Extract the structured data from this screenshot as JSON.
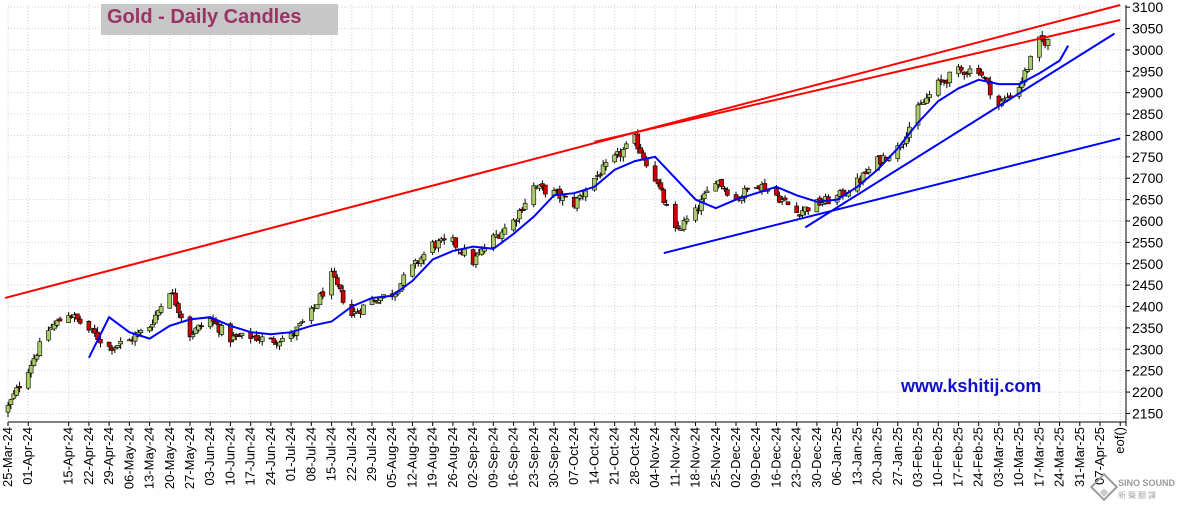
{
  "title": "Gold - Daily Candles",
  "watermark": "www.kshitij.com",
  "logo": {
    "name": "SINO SOUND",
    "sub": "新聲翻譯"
  },
  "chart_data": {
    "type": "candlestick",
    "title": "Gold - Daily Candles",
    "y_ticks": [
      2150,
      2200,
      2250,
      2300,
      2350,
      2400,
      2450,
      2500,
      2550,
      2600,
      2650,
      2700,
      2750,
      2800,
      2850,
      2900,
      2950,
      3000,
      3050,
      3100
    ],
    "ylim": [
      2130,
      3105
    ],
    "x_tick_labels": [
      "25-Mar-24",
      "01-Apr-24",
      "15-Apr-24",
      "22-Apr-24",
      "29-Apr-24",
      "06-May-24",
      "13-May-24",
      "20-May-24",
      "27-May-24",
      "03-Jun-24",
      "10-Jun-24",
      "17-Jun-24",
      "24-Jun-24",
      "01-Jul-24",
      "08-Jul-24",
      "15-Jul-24",
      "22-Jul-24",
      "29-Jul-24",
      "05-Aug-24",
      "12-Aug-24",
      "19-Aug-24",
      "26-Aug-24",
      "02-Sep-24",
      "09-Sep-24",
      "16-Sep-24",
      "23-Sep-24",
      "30-Sep-24",
      "07-Oct-24",
      "14-Oct-24",
      "21-Oct-24",
      "28-Oct-24",
      "04-Nov-24",
      "11-Nov-24",
      "18-Nov-24",
      "25-Nov-24",
      "02-Dec-24",
      "09-Dec-24",
      "16-Dec-24",
      "23-Dec-24",
      "30-Dec-24",
      "06-Jan-25",
      "13-Jan-25",
      "20-Jan-25",
      "27-Jan-25",
      "03-Feb-25",
      "10-Feb-25",
      "17-Feb-25",
      "24-Feb-25",
      "03-Mar-25",
      "10-Mar-25",
      "17-Mar-25",
      "24-Mar-25",
      "31-Mar-25",
      "07-Apr-25",
      "eof()"
    ],
    "close_anchors": [
      [
        "25-Mar-24",
        2165
      ],
      [
        "01-Apr-24",
        2255
      ],
      [
        "08-Apr-24",
        2345
      ],
      [
        "15-Apr-24",
        2385
      ],
      [
        "22-Apr-24",
        2345
      ],
      [
        "29-Apr-24",
        2305
      ],
      [
        "06-May-24",
        2320
      ],
      [
        "13-May-24",
        2355
      ],
      [
        "20-May-24",
        2440
      ],
      [
        "27-May-24",
        2335
      ],
      [
        "03-Jun-24",
        2370
      ],
      [
        "10-Jun-24",
        2325
      ],
      [
        "17-Jun-24",
        2330
      ],
      [
        "24-Jun-24",
        2320
      ],
      [
        "01-Jul-24",
        2330
      ],
      [
        "08-Jul-24",
        2385
      ],
      [
        "15-Jul-24",
        2470
      ],
      [
        "22-Jul-24",
        2380
      ],
      [
        "29-Jul-24",
        2415
      ],
      [
        "05-Aug-24",
        2430
      ],
      [
        "12-Aug-24",
        2490
      ],
      [
        "19-Aug-24",
        2545
      ],
      [
        "26-Aug-24",
        2550
      ],
      [
        "02-Sep-24",
        2505
      ],
      [
        "09-Sep-24",
        2560
      ],
      [
        "16-Sep-24",
        2600
      ],
      [
        "23-Sep-24",
        2680
      ],
      [
        "30-Sep-24",
        2665
      ],
      [
        "07-Oct-24",
        2640
      ],
      [
        "14-Oct-24",
        2700
      ],
      [
        "21-Oct-24",
        2745
      ],
      [
        "28-Oct-24",
        2790
      ],
      [
        "04-Nov-24",
        2700
      ],
      [
        "11-Nov-24",
        2575
      ],
      [
        "18-Nov-24",
        2620
      ],
      [
        "25-Nov-24",
        2700
      ],
      [
        "02-Dec-24",
        2650
      ],
      [
        "09-Dec-24",
        2690
      ],
      [
        "16-Dec-24",
        2660
      ],
      [
        "23-Dec-24",
        2620
      ],
      [
        "30-Dec-24",
        2640
      ],
      [
        "06-Jan-25",
        2655
      ],
      [
        "13-Jan-25",
        2690
      ],
      [
        "20-Jan-25",
        2740
      ],
      [
        "27-Jan-25",
        2770
      ],
      [
        "03-Feb-25",
        2860
      ],
      [
        "10-Feb-25",
        2920
      ],
      [
        "17-Feb-25",
        2950
      ],
      [
        "24-Feb-25",
        2955
      ],
      [
        "03-Mar-25",
        2870
      ],
      [
        "10-Mar-25",
        2915
      ],
      [
        "17-Mar-25",
        3020
      ]
    ],
    "moving_average_points": [
      [
        "22-Apr-24",
        2280
      ],
      [
        "29-Apr-24",
        2375
      ],
      [
        "06-May-24",
        2340
      ],
      [
        "13-May-24",
        2325
      ],
      [
        "20-May-24",
        2355
      ],
      [
        "27-May-24",
        2370
      ],
      [
        "03-Jun-24",
        2375
      ],
      [
        "10-Jun-24",
        2355
      ],
      [
        "17-Jun-24",
        2340
      ],
      [
        "24-Jun-24",
        2335
      ],
      [
        "01-Jul-24",
        2340
      ],
      [
        "08-Jul-24",
        2355
      ],
      [
        "15-Jul-24",
        2365
      ],
      [
        "22-Jul-24",
        2400
      ],
      [
        "29-Jul-24",
        2420
      ],
      [
        "05-Aug-24",
        2425
      ],
      [
        "12-Aug-24",
        2460
      ],
      [
        "19-Aug-24",
        2510
      ],
      [
        "26-Aug-24",
        2530
      ],
      [
        "02-Sep-24",
        2540
      ],
      [
        "09-Sep-24",
        2535
      ],
      [
        "16-Sep-24",
        2570
      ],
      [
        "23-Sep-24",
        2610
      ],
      [
        "30-Sep-24",
        2660
      ],
      [
        "07-Oct-24",
        2665
      ],
      [
        "14-Oct-24",
        2680
      ],
      [
        "21-Oct-24",
        2720
      ],
      [
        "28-Oct-24",
        2740
      ],
      [
        "04-Nov-24",
        2750
      ],
      [
        "11-Nov-24",
        2700
      ],
      [
        "18-Nov-24",
        2650
      ],
      [
        "25-Nov-24",
        2630
      ],
      [
        "02-Dec-24",
        2650
      ],
      [
        "09-Dec-24",
        2665
      ],
      [
        "16-Dec-24",
        2680
      ],
      [
        "23-Dec-24",
        2660
      ],
      [
        "30-Dec-24",
        2645
      ],
      [
        "06-Jan-25",
        2650
      ],
      [
        "13-Jan-25",
        2680
      ],
      [
        "20-Jan-25",
        2720
      ],
      [
        "27-Jan-25",
        2770
      ],
      [
        "03-Feb-25",
        2830
      ],
      [
        "10-Feb-25",
        2880
      ],
      [
        "17-Feb-25",
        2910
      ],
      [
        "24-Feb-25",
        2930
      ],
      [
        "03-Mar-25",
        2920
      ],
      [
        "10-Mar-25",
        2920
      ],
      [
        "17-Mar-25",
        2945
      ],
      [
        "24-Mar-25",
        2975
      ],
      [
        "27-Mar-25",
        3010
      ]
    ],
    "trend_lines": [
      {
        "color": "#ff0000",
        "from": [
          "24-Mar-24",
          2420
        ],
        "to": [
          "14-Apr-25",
          3105
        ]
      },
      {
        "color": "#ff0000",
        "from": [
          "14-Oct-24",
          2785
        ],
        "to": [
          "14-Apr-25",
          3070
        ]
      },
      {
        "color": "#0000ff",
        "from": [
          "07-Nov-24",
          2525
        ],
        "to": [
          "14-Apr-25",
          2793
        ]
      },
      {
        "color": "#0000ff",
        "from": [
          "26-Dec-24",
          2585
        ],
        "to": [
          "12-Apr-25",
          3038
        ]
      }
    ],
    "colors": {
      "up": "#aacc66",
      "down": "#cc0000",
      "wick": "#000000",
      "moving_average": "#0000ff",
      "grid": "#d0d0d0"
    },
    "grid": true
  }
}
